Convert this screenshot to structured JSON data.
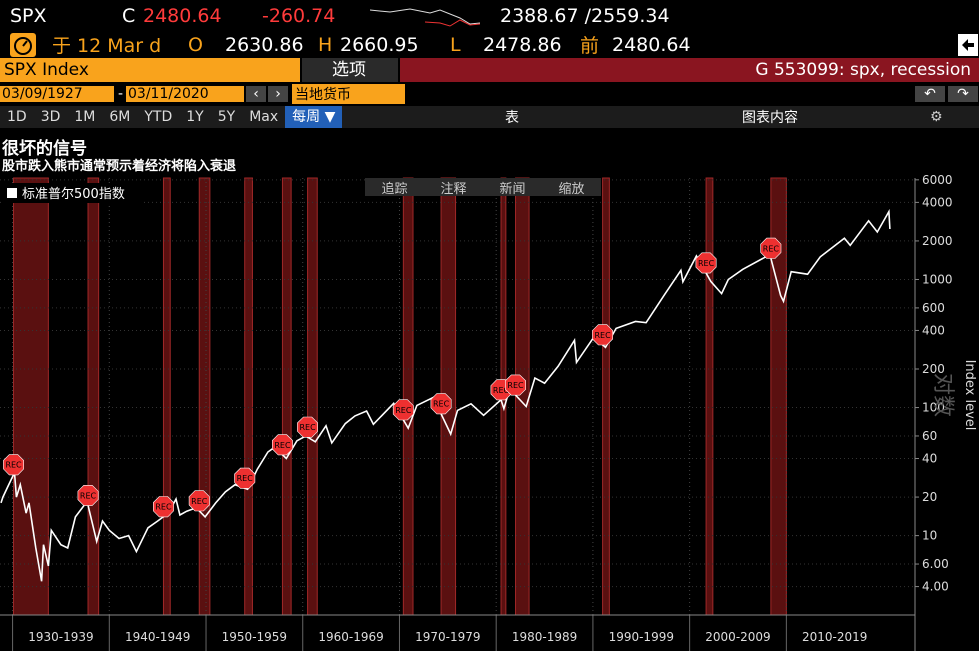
{
  "header": {
    "ticker": "SPX",
    "close_label": "C",
    "last": "2480.64",
    "change": "-260.74",
    "range": "2388.67 /2559.34",
    "time": "于 12 Mar d",
    "open_label": "O",
    "open": "2630.86",
    "high_label": "H",
    "high": "2660.95",
    "low_label": "L",
    "low": "2478.86",
    "prev_label": "前",
    "prev": "2480.64"
  },
  "security_bar": {
    "security": "SPX Index",
    "options": "选项",
    "page_title": "G 553099: spx, recession"
  },
  "date_bar": {
    "start": "03/09/1927",
    "separator": "-",
    "end": "03/11/2020",
    "currency": "当地货币"
  },
  "toolbar": {
    "periods": [
      "1D",
      "3D",
      "1M",
      "6M",
      "YTD",
      "1Y",
      "5Y",
      "Max"
    ],
    "frequency": "每周 ▼",
    "table": "表",
    "chart_content": "图表内容"
  },
  "chart_tools": [
    "追踪",
    "注释",
    "新闻",
    "缩放"
  ],
  "chart_data": {
    "type": "line",
    "title": "很坏的信号",
    "subtitle": "股市跌入熊市通常预示着经济将陷入衰退",
    "y_label": "Index level",
    "scale_label": "对数",
    "log_scale": true,
    "grid": true,
    "legend": "upper left",
    "x": [
      1928.3,
      1928.5,
      1929.0,
      1929.7,
      1929.9,
      1930.3,
      1930.9,
      1931.2,
      1931.9,
      1932.5,
      1932.7,
      1933.2,
      1933.5,
      1934.5,
      1935.2,
      1936.0,
      1937.2,
      1938.2,
      1938.8,
      1939.5,
      1940.5,
      1941.5,
      1942.3,
      1943.5,
      1944.5,
      1945.6,
      1946.4,
      1946.8,
      1947.5,
      1948.5,
      1949.4,
      1950.5,
      1951.5,
      1952.5,
      1953.8,
      1954.8,
      1955.9,
      1956.6,
      1957.8,
      1958.9,
      1959.8,
      1960.8,
      1961.9,
      1962.5,
      1963.9,
      1964.9,
      1966.1,
      1966.8,
      1968.9,
      1970.4,
      1971.3,
      1973.0,
      1974.8,
      1975.5,
      1976.9,
      1978.2,
      1980.0,
      1980.3,
      1980.9,
      1982.6,
      1983.5,
      1984.5,
      1985.9,
      1987.6,
      1987.8,
      1989.6,
      1990.8,
      1991.9,
      1993.9,
      1995.0,
      1996.9,
      1998.6,
      1998.8,
      2000.2,
      2001.7,
      2002.8,
      2003.5,
      2005.0,
      2007.8,
      2008.9,
      2009.2,
      2010.0,
      2011.7,
      2013.0,
      2015.5,
      2016.1,
      2018.0,
      2018.9,
      2020.1,
      2020.2
    ],
    "series": [
      {
        "name": "标准普尔500指数",
        "color": "#ffffff",
        "values": [
          18,
          20,
          24,
          31,
          20,
          25,
          15,
          18,
          8,
          4.4,
          8.5,
          5.8,
          11,
          8.5,
          8,
          14,
          18.5,
          9,
          13,
          11,
          9.5,
          10,
          7.5,
          11.5,
          13,
          15,
          19.3,
          14.5,
          15.5,
          16.5,
          14,
          18,
          22,
          25,
          23,
          33,
          45,
          49,
          40,
          55,
          60,
          54,
          72,
          53,
          75,
          86,
          94,
          74,
          108,
          69,
          104,
          120,
          62,
          95,
          107,
          87,
          115,
          98,
          140,
          102,
          170,
          155,
          210,
          335,
          225,
          355,
          295,
          415,
          470,
          460,
          760,
          1180,
          960,
          1527,
          965,
          776,
          1000,
          1200,
          1565,
          750,
          676,
          1150,
          1100,
          1500,
          2100,
          1850,
          2870,
          2350,
          3386,
          2480.64
        ]
      }
    ],
    "xlim": [
      1928.2,
      2022.8
    ],
    "xticks": [
      {
        "value": 1934.5,
        "label": "1930-1939"
      },
      {
        "value": 1944.5,
        "label": "1940-1949"
      },
      {
        "value": 1954.5,
        "label": "1950-1959"
      },
      {
        "value": 1964.5,
        "label": "1960-1969"
      },
      {
        "value": 1974.5,
        "label": "1970-1979"
      },
      {
        "value": 1984.5,
        "label": "1980-1989"
      },
      {
        "value": 1994.5,
        "label": "1990-1999"
      },
      {
        "value": 2004.5,
        "label": "2000-2009"
      },
      {
        "value": 2014.5,
        "label": "2010-2019"
      }
    ],
    "ylim": [
      2.4,
      6200
    ],
    "yticks": [
      {
        "value": 4,
        "label": "4.00"
      },
      {
        "value": 6,
        "label": "6.00"
      },
      10,
      20,
      40,
      60,
      100,
      200,
      400,
      600,
      1000,
      2000,
      4000,
      6000
    ],
    "recession_label": "REC",
    "recession_color": "#5a1010",
    "recessions": [
      [
        1929.6,
        1933.2
      ],
      [
        1937.3,
        1938.4
      ],
      [
        1945.1,
        1945.8
      ],
      [
        1948.8,
        1949.9
      ],
      [
        1953.5,
        1954.3
      ],
      [
        1957.4,
        1958.3
      ],
      [
        1960.0,
        1961.0
      ],
      [
        1969.9,
        1970.9
      ],
      [
        1973.8,
        1975.3
      ],
      [
        1980.0,
        1980.5
      ],
      [
        1981.5,
        1982.9
      ],
      [
        1990.5,
        1991.2
      ],
      [
        2001.2,
        2001.9
      ],
      [
        2007.9,
        2009.5
      ]
    ]
  }
}
